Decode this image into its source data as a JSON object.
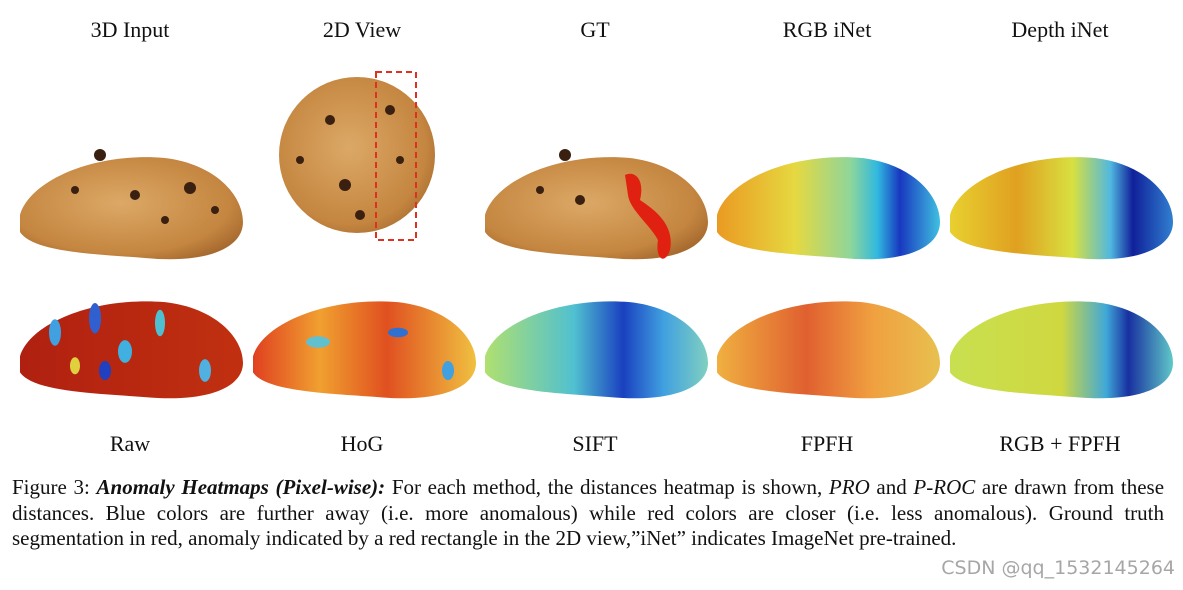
{
  "figure": {
    "top_labels": [
      "3D Input",
      "2D View",
      "GT",
      "RGB iNet",
      "Depth iNet"
    ],
    "bottom_labels": [
      "Raw",
      "HoG",
      "SIFT",
      "FPFH",
      "RGB + FPFH"
    ],
    "caption": {
      "label": "Figure 3:",
      "title": "Anomaly Heatmaps (Pixel-wise):",
      "text_1": "For each method, the distances heatmap is shown,",
      "term_1": "PRO",
      "text_2": "and",
      "term_2": "P-ROC",
      "text_3": "are drawn from these distances. Blue colors are further away (i.e. more anomalous) while red colors are closer (i.e. less anomalous). Ground truth segmentation in red, anomaly indicated by a red rectangle in the 2D view,”iNet” indicates ImageNet pre-trained."
    },
    "watermark": "CSDN @qq_1532145264"
  }
}
